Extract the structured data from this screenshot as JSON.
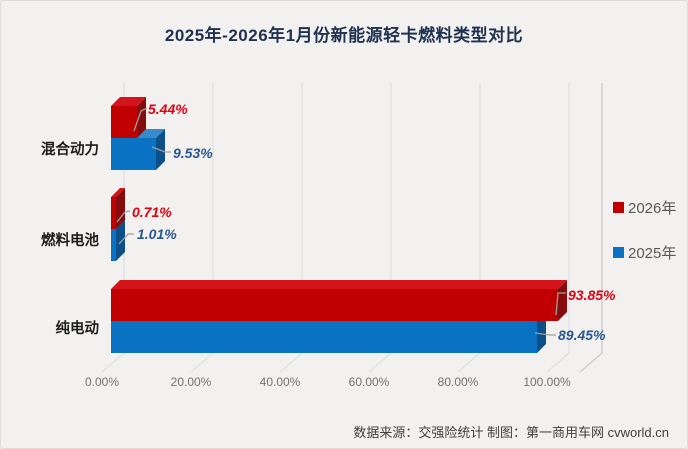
{
  "title": "2025年-2026年1月份新能源轻卡燃料类型对比",
  "source_note": "数据来源：交强险统计 制图：第一商用车网 cvworld.cn",
  "colors": {
    "bar_2026": "#c00000",
    "bar_2025": "#0a72c2",
    "label_2026": "#e3000f",
    "label_2025": "#2a5792",
    "title": "#1f3150",
    "background": "#f2f1f0",
    "gridline": "#dcdcdc"
  },
  "legend": {
    "items": [
      {
        "label": "2026年",
        "color": "#c00000"
      },
      {
        "label": "2025年",
        "color": "#0a72c2"
      }
    ]
  },
  "chart_data": {
    "type": "bar",
    "orientation": "horizontal",
    "style": "3d",
    "title": "2025年-2026年1月份新能源轻卡燃料类型对比",
    "categories": [
      "混合动力",
      "燃料电池",
      "纯电动"
    ],
    "series": [
      {
        "name": "2026年",
        "color": "#c00000",
        "values": [
          5.44,
          0.71,
          93.85
        ],
        "labels": [
          "5.44%",
          "0.71%",
          "93.85%"
        ]
      },
      {
        "name": "2025年",
        "color": "#0a72c2",
        "values": [
          9.53,
          1.01,
          89.45
        ],
        "labels": [
          "9.53%",
          "1.01%",
          "89.45%"
        ]
      }
    ],
    "xlabel": "",
    "ylabel": "",
    "xlim": [
      0,
      100
    ],
    "x_ticks": [
      "0.00%",
      "20.00%",
      "40.00%",
      "60.00%",
      "80.00%",
      "100.00%"
    ],
    "grid": true,
    "legend_position": "right"
  }
}
